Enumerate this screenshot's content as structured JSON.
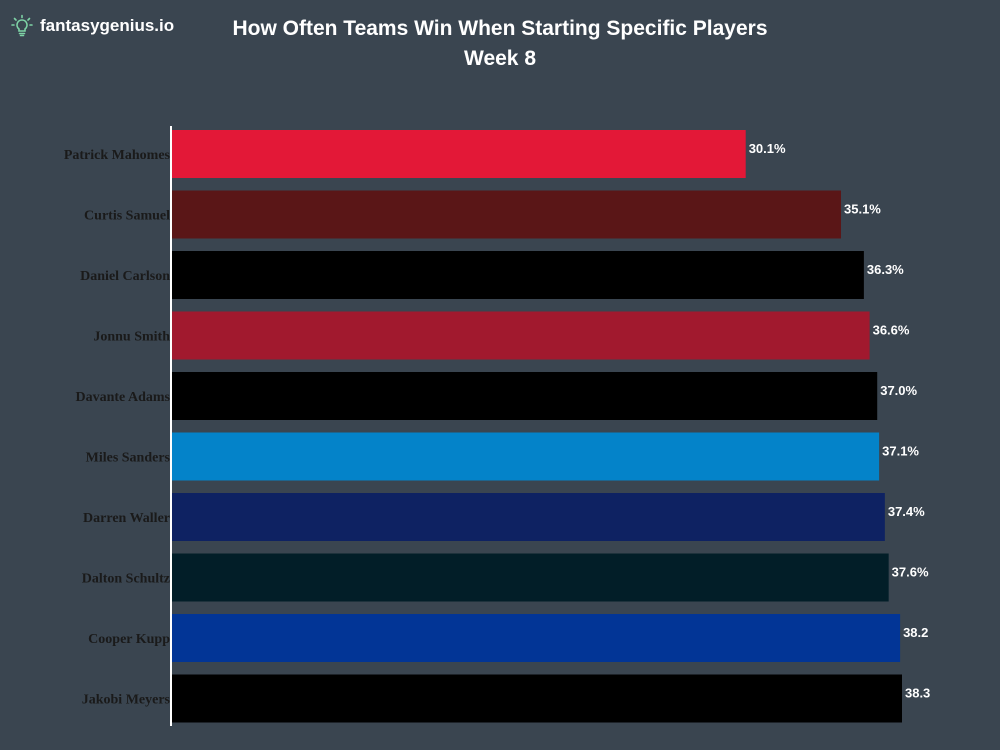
{
  "brand": {
    "name": "fantasygenius.io",
    "icon": "lightbulb-icon",
    "accent": "#7ed3a6"
  },
  "chart_data": {
    "type": "bar",
    "orientation": "horizontal",
    "title": "How Often Teams Win When Starting Specific Players",
    "subtitle": "Week 8",
    "categories": [
      "Patrick Mahomes",
      "Curtis Samuel",
      "Daniel Carlson",
      "Jonnu Smith",
      "Davante Adams",
      "Miles Sanders",
      "Darren Waller",
      "Dalton Schultz",
      "Cooper Kupp",
      "Jakobi Meyers"
    ],
    "values": [
      30.1,
      35.1,
      36.3,
      36.6,
      37.0,
      37.1,
      37.4,
      37.6,
      38.2,
      38.3
    ],
    "value_labels": [
      "30.1%",
      "35.1%",
      "36.3%",
      "36.6%",
      "37.0%",
      "37.1%",
      "37.4%",
      "37.6%",
      "38.2",
      "38.3"
    ],
    "colors": [
      "#e31837",
      "#5a1617",
      "#000000",
      "#a1192e",
      "#000000",
      "#0483c9",
      "#0e2262",
      "#021e28",
      "#023596",
      "#000000"
    ],
    "xlim": [
      0,
      40
    ],
    "xlabel": "",
    "ylabel": "",
    "grid": false,
    "legend": "none"
  }
}
